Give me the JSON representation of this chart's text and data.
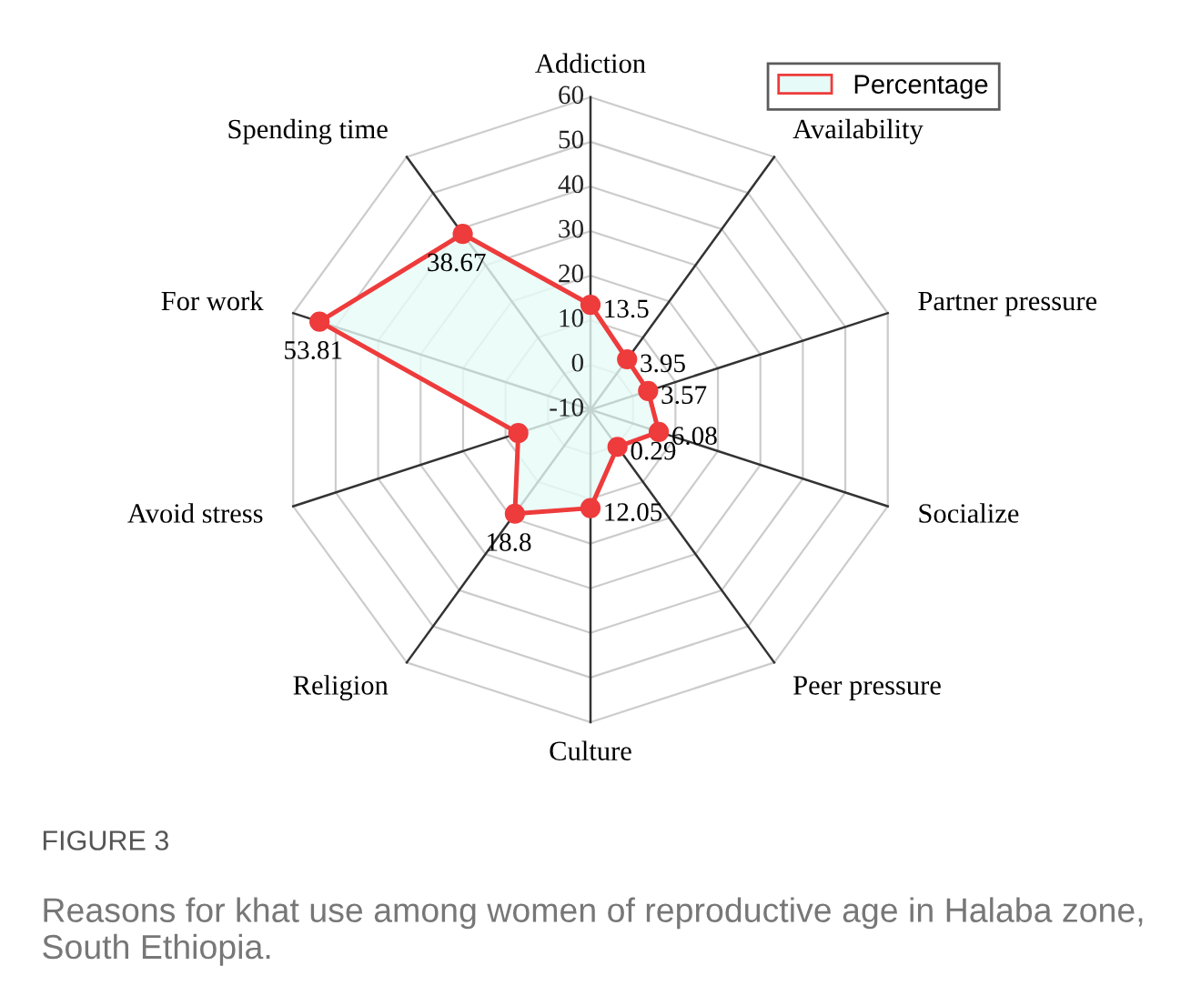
{
  "chart_data": {
    "type": "radar",
    "title": "FIGURE 3",
    "subtitle": "Reasons for khat use among women of reproductive age in Halaba zone, South Ethiopia.",
    "categories": [
      "Addiction",
      "Availability",
      "Partner pressure",
      "Socialize",
      "Peer pressure",
      "Culture",
      "Religion",
      "Avoid stress",
      "For work",
      "Spending time"
    ],
    "series": [
      {
        "name": "Percentage",
        "color": "#ee3b3b",
        "values": [
          13.5,
          3.95,
          3.57,
          6.08,
          0.29,
          12.05,
          18.8,
          7,
          53.81,
          38.67
        ],
        "value_labels": [
          "13.5",
          "3.95",
          "3.57",
          "6.08",
          "0.29",
          "12.05",
          "18.8",
          null,
          "53.81",
          "38.67"
        ]
      }
    ],
    "ylim": [
      -10,
      60
    ],
    "yticks": [
      -10,
      0,
      10,
      20,
      30,
      40,
      50,
      60
    ],
    "marker": "circle",
    "legend": "top right",
    "grid": true
  }
}
